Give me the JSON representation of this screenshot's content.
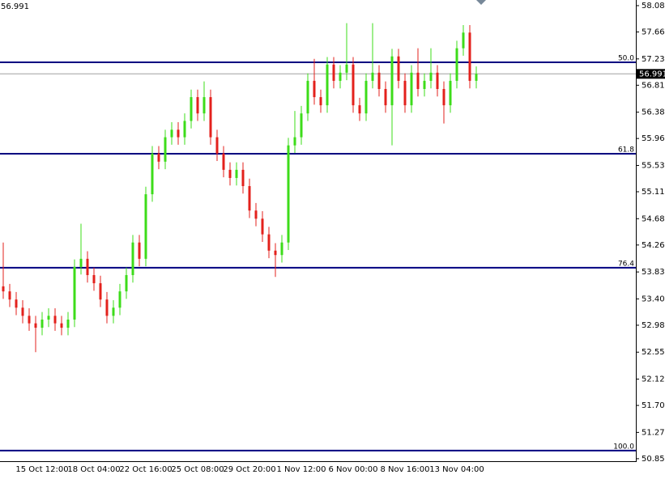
{
  "chart_data": {
    "type": "candlestick",
    "current_price": {
      "value": 56.991,
      "label": "56.991"
    },
    "ylim": [
      50.81,
      58.17
    ],
    "yticks": [
      {
        "value": 58.08,
        "label": "58.080"
      },
      {
        "value": 57.66,
        "label": "57.660"
      },
      {
        "value": 57.23,
        "label": "57.230"
      },
      {
        "value": 56.81,
        "label": "56.810"
      },
      {
        "value": 56.38,
        "label": "56.380"
      },
      {
        "value": 55.96,
        "label": "55.960"
      },
      {
        "value": 55.53,
        "label": "55.530"
      },
      {
        "value": 55.11,
        "label": "55.110"
      },
      {
        "value": 54.68,
        "label": "54.680"
      },
      {
        "value": 54.26,
        "label": "54.260"
      },
      {
        "value": 53.83,
        "label": "53.830"
      },
      {
        "value": 53.4,
        "label": "53.400"
      },
      {
        "value": 52.98,
        "label": "52.980"
      },
      {
        "value": 52.55,
        "label": "52.550"
      },
      {
        "value": 52.12,
        "label": "52.120"
      },
      {
        "value": 51.7,
        "label": "51.700"
      },
      {
        "value": 51.27,
        "label": "51.270"
      },
      {
        "value": 50.85,
        "label": "50.850"
      }
    ],
    "fib_levels": [
      {
        "label": "50.0",
        "price": 57.176
      },
      {
        "label": "61.8",
        "price": 55.717
      },
      {
        "label": "76.4",
        "price": 53.897
      },
      {
        "label": "100.0",
        "price": 50.98
      }
    ],
    "up_color": "#3ddc1a",
    "down_color": "#e3211c",
    "level_color": "#000080",
    "categories": [
      null,
      null,
      null,
      null,
      null,
      null,
      "15 Oct 12:00",
      null,
      null,
      null,
      null,
      null,
      null,
      null,
      "18 Oct 04:00",
      null,
      null,
      null,
      null,
      null,
      null,
      null,
      "22 Oct 16:00",
      null,
      null,
      null,
      null,
      null,
      null,
      null,
      "25 Oct 08:00",
      null,
      null,
      null,
      null,
      null,
      null,
      null,
      "29 Oct 20:00",
      null,
      null,
      null,
      null,
      null,
      null,
      null,
      "1 Nov 12:00",
      null,
      null,
      null,
      null,
      null,
      null,
      null,
      "6 Nov 00:00",
      null,
      null,
      null,
      null,
      null,
      null,
      null,
      "8 Nov 16:00",
      null,
      null,
      null,
      null,
      null,
      null,
      null,
      "13 Nov 04:00",
      null,
      null,
      null
    ],
    "ohlc": [
      [
        53.6,
        54.3,
        53.4,
        53.52
      ],
      [
        53.52,
        53.64,
        53.27,
        53.39
      ],
      [
        53.39,
        53.51,
        53.14,
        53.26
      ],
      [
        53.26,
        53.38,
        53.01,
        53.13
      ],
      [
        53.13,
        53.25,
        52.89,
        53.01
      ],
      [
        53.01,
        53.13,
        52.55,
        52.94
      ],
      [
        52.94,
        53.19,
        52.82,
        53.07
      ],
      [
        53.07,
        53.25,
        52.95,
        53.13
      ],
      [
        53.13,
        53.25,
        52.89,
        53.01
      ],
      [
        53.01,
        53.13,
        52.82,
        52.94
      ],
      [
        52.94,
        53.19,
        52.82,
        53.07
      ],
      [
        53.07,
        54.03,
        52.95,
        53.91
      ],
      [
        53.91,
        54.6,
        53.79,
        54.04
      ],
      [
        54.04,
        54.16,
        53.66,
        53.78
      ],
      [
        53.78,
        53.9,
        53.53,
        53.65
      ],
      [
        53.65,
        53.77,
        53.27,
        53.39
      ],
      [
        53.39,
        53.51,
        53.01,
        53.13
      ],
      [
        53.13,
        53.38,
        53.01,
        53.26
      ],
      [
        53.26,
        53.64,
        53.14,
        53.52
      ],
      [
        53.52,
        53.9,
        53.4,
        53.78
      ],
      [
        53.78,
        54.42,
        53.66,
        54.3
      ],
      [
        54.3,
        54.42,
        53.92,
        54.04
      ],
      [
        54.04,
        55.19,
        53.92,
        55.07
      ],
      [
        55.07,
        55.84,
        54.95,
        55.72
      ],
      [
        55.72,
        55.84,
        55.47,
        55.59
      ],
      [
        55.59,
        56.1,
        55.47,
        55.98
      ],
      [
        55.98,
        56.22,
        55.86,
        56.1
      ],
      [
        56.1,
        56.22,
        55.86,
        55.98
      ],
      [
        55.98,
        56.36,
        55.86,
        56.24
      ],
      [
        56.24,
        56.74,
        56.12,
        56.62
      ],
      [
        56.62,
        56.74,
        56.24,
        56.36
      ],
      [
        56.36,
        56.87,
        56.24,
        56.62
      ],
      [
        56.62,
        56.74,
        55.86,
        55.98
      ],
      [
        55.98,
        56.1,
        55.6,
        55.72
      ],
      [
        55.72,
        55.84,
        55.34,
        55.46
      ],
      [
        55.46,
        55.58,
        55.21,
        55.33
      ],
      [
        55.33,
        55.58,
        55.21,
        55.46
      ],
      [
        55.46,
        55.58,
        55.08,
        55.2
      ],
      [
        55.2,
        55.32,
        54.69,
        54.81
      ],
      [
        54.81,
        54.93,
        54.56,
        54.68
      ],
      [
        54.68,
        54.8,
        54.31,
        54.43
      ],
      [
        54.43,
        54.55,
        54.05,
        54.17
      ],
      [
        54.17,
        54.29,
        53.75,
        54.1
      ],
      [
        54.1,
        54.42,
        53.98,
        54.3
      ],
      [
        54.3,
        55.97,
        54.18,
        55.85
      ],
      [
        55.85,
        56.4,
        55.73,
        55.98
      ],
      [
        55.98,
        56.48,
        55.86,
        56.36
      ],
      [
        56.36,
        57.0,
        56.24,
        56.88
      ],
      [
        56.88,
        57.23,
        56.5,
        56.62
      ],
      [
        56.62,
        56.74,
        56.37,
        56.49
      ],
      [
        56.49,
        57.26,
        56.37,
        57.14
      ],
      [
        57.14,
        57.26,
        56.76,
        56.88
      ],
      [
        56.88,
        57.13,
        56.76,
        57.01
      ],
      [
        57.01,
        57.8,
        56.89,
        57.14
      ],
      [
        57.14,
        57.26,
        56.37,
        56.49
      ],
      [
        56.49,
        56.61,
        56.24,
        56.36
      ],
      [
        56.36,
        57.0,
        56.24,
        56.88
      ],
      [
        56.88,
        57.8,
        56.76,
        57.01
      ],
      [
        57.01,
        57.13,
        56.63,
        56.75
      ],
      [
        56.75,
        56.87,
        56.37,
        56.49
      ],
      [
        56.49,
        57.39,
        55.85,
        57.27
      ],
      [
        57.27,
        57.39,
        56.76,
        56.88
      ],
      [
        56.88,
        57.0,
        56.37,
        56.49
      ],
      [
        56.49,
        57.13,
        56.37,
        57.01
      ],
      [
        57.01,
        57.4,
        56.63,
        56.75
      ],
      [
        56.75,
        57.0,
        56.63,
        56.88
      ],
      [
        56.88,
        57.4,
        56.76,
        57.01
      ],
      [
        57.01,
        57.13,
        56.63,
        56.75
      ],
      [
        56.75,
        56.87,
        56.2,
        56.49
      ],
      [
        56.49,
        57.0,
        56.37,
        56.88
      ],
      [
        56.88,
        57.52,
        56.76,
        57.4
      ],
      [
        57.4,
        57.77,
        57.28,
        57.65
      ],
      [
        57.65,
        57.77,
        56.76,
        56.88
      ],
      [
        56.88,
        57.11,
        56.76,
        56.99
      ]
    ]
  }
}
